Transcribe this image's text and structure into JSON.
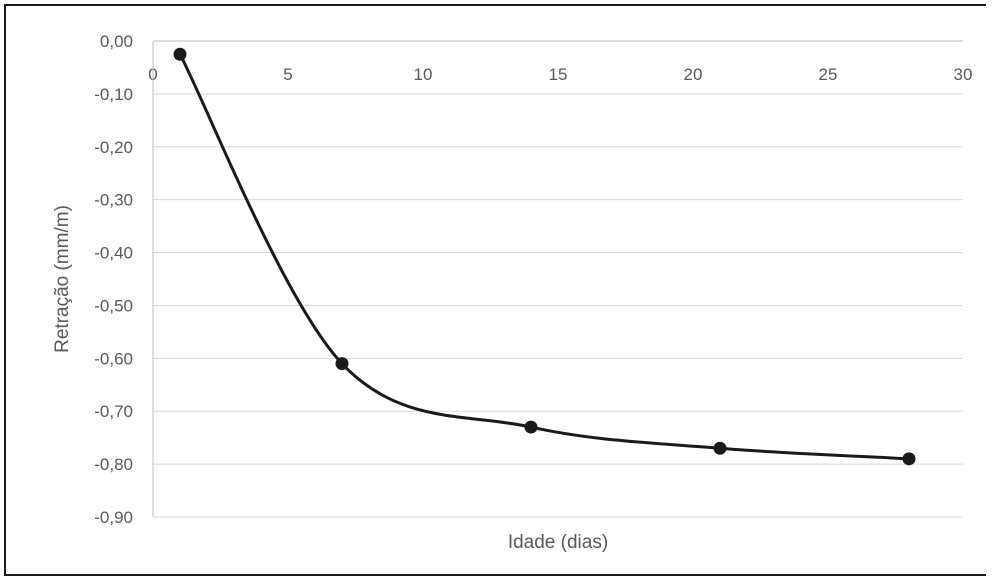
{
  "chart_data": {
    "type": "line",
    "title": "",
    "xlabel": "Idade (dias)",
    "ylabel": "Retração (mm/m)",
    "xlim": [
      0,
      30
    ],
    "ylim": [
      -0.9,
      0
    ],
    "x_ticks": [
      0,
      5,
      10,
      15,
      20,
      25,
      30
    ],
    "x_tick_labels": [
      "0",
      "5",
      "10",
      "15",
      "20",
      "25",
      "30"
    ],
    "y_ticks": [
      0,
      -0.1,
      -0.2,
      -0.3,
      -0.4,
      -0.5,
      -0.6,
      -0.7,
      -0.8,
      -0.9
    ],
    "y_tick_labels": [
      "0,00",
      "-0,10",
      "-0,20",
      "-0,30",
      "-0,40",
      "-0,50",
      "-0,60",
      "-0,70",
      "-0,80",
      "-0,90"
    ],
    "grid": true,
    "legend": "none",
    "smooth": true,
    "series": [
      {
        "x": [
          1,
          7,
          14,
          21,
          28
        ],
        "values": [
          -0.025,
          -0.61,
          -0.73,
          -0.77,
          -0.79
        ],
        "color": "#1a1a1a"
      }
    ]
  }
}
